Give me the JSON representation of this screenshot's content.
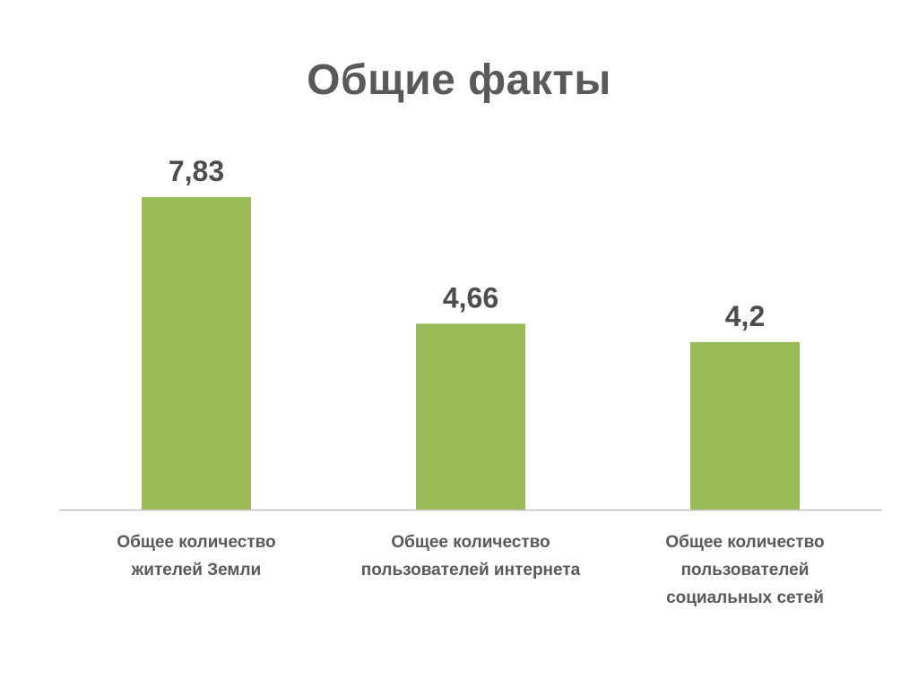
{
  "slide": {
    "title": "Общие факты"
  },
  "chart_data": {
    "type": "bar",
    "title": "Общие факты",
    "categories": [
      "Общее количество жителей Земли",
      "Общее количество пользователей интернета",
      "Общее количество пользователей социальных сетей"
    ],
    "category_label_lines": [
      [
        "Общее количество",
        "жителей Земли"
      ],
      [
        "Общее количество",
        "пользователей интернета"
      ],
      [
        "Общее количество",
        "пользователей",
        "социальных сетей"
      ]
    ],
    "values": [
      7.83,
      4.66,
      4.2
    ],
    "value_labels": [
      "7,83",
      "4,66",
      "4,2"
    ],
    "xlabel": "",
    "ylabel": "",
    "ylim": [
      0,
      9
    ],
    "grid": false,
    "legend": "none",
    "colors": {
      "bar": "#9bbb59",
      "text": "#595959",
      "axis": "#c0c0c0"
    }
  }
}
